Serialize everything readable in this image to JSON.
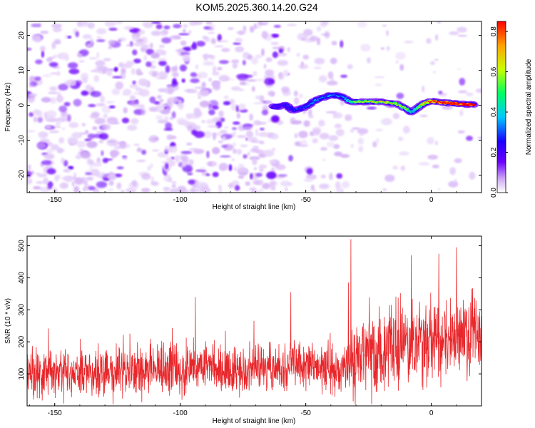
{
  "title": "KOM5.2025.360.14.20.G24",
  "chart_data": [
    {
      "type": "heatmap",
      "title": "KOM5.2025.360.14.20.G24",
      "xlabel": "Height of straight line (km)",
      "ylabel": "Frequency (Hz)",
      "xlim": [
        -161,
        20
      ],
      "ylim": [
        -25,
        24
      ],
      "xticks": [
        -150,
        -100,
        -50,
        0
      ],
      "xtick_labels": [
        "-150",
        "-100",
        "-50",
        "0"
      ],
      "yticks": [
        -20,
        -10,
        0,
        10,
        20
      ],
      "ytick_labels": [
        "-20",
        "-10",
        "0",
        "10",
        "20"
      ],
      "colorbar": {
        "label": "Normalized spectral amplitude",
        "range": [
          0.0,
          0.85
        ],
        "ticks": [
          0.0,
          0.2,
          0.4,
          0.6,
          0.8
        ],
        "tick_labels": [
          "0.0",
          "0.2",
          "0.4",
          "0.6",
          "0.8"
        ],
        "colormap": [
          "#ffffff",
          "#cfa8f5",
          "#6a00ff",
          "#1a00ff",
          "#00c8ff",
          "#00ff60",
          "#c8ff00",
          "#ffa000",
          "#ff0000"
        ]
      },
      "ridge": {
        "name": "signal track",
        "x": [
          -63,
          -58,
          -55,
          -50,
          -46,
          -42,
          -40,
          -36,
          -32,
          -27,
          -20,
          -14,
          -10,
          -8,
          -5,
          -3,
          0,
          4,
          8,
          12,
          17
        ],
        "y": [
          -0.5,
          0.0,
          -1.5,
          -0.5,
          1.5,
          2.5,
          3.0,
          2.5,
          1.0,
          1.0,
          1.0,
          0.5,
          -1.0,
          -2.0,
          -0.5,
          0.5,
          1.2,
          0.8,
          0.6,
          0.3,
          0.2
        ],
        "amplitude": [
          0.22,
          0.25,
          0.28,
          0.3,
          0.35,
          0.3,
          0.32,
          0.3,
          0.45,
          0.55,
          0.6,
          0.55,
          0.5,
          0.35,
          0.5,
          0.55,
          0.7,
          0.75,
          0.8,
          0.8,
          0.85
        ]
      },
      "noise_floor_amplitude": 0.08
    },
    {
      "type": "line",
      "xlabel": "Height of straight line (km)",
      "ylabel": "SNR (10 * v/v)",
      "xlim": [
        -161,
        20
      ],
      "ylim": [
        0,
        530
      ],
      "xticks": [
        -150,
        -100,
        -50,
        0
      ],
      "xtick_labels": [
        "-150",
        "-100",
        "-50",
        "0"
      ],
      "yticks": [
        100,
        200,
        300,
        400,
        500
      ],
      "ytick_labels": [
        "100",
        "200",
        "300",
        "400",
        "500"
      ],
      "series": [
        {
          "name": "SNR",
          "color": "#e8272b",
          "baseline_segments": [
            {
              "x0": -161,
              "x1": -32,
              "mean0": 100,
              "mean1": 125,
              "spread": 55
            },
            {
              "x0": -32,
              "x1": 20,
              "mean0": 150,
              "mean1": 230,
              "spread": 95
            }
          ],
          "peaks": [
            {
              "x": -32,
              "y": 520
            },
            {
              "x": -33,
              "y": 385
            },
            {
              "x": 10,
              "y": 495
            },
            {
              "x": 3,
              "y": 475
            },
            {
              "x": -8,
              "y": 470
            },
            {
              "x": -56,
              "y": 355
            },
            {
              "x": -94,
              "y": 340
            }
          ],
          "samples": 1800
        }
      ]
    }
  ]
}
